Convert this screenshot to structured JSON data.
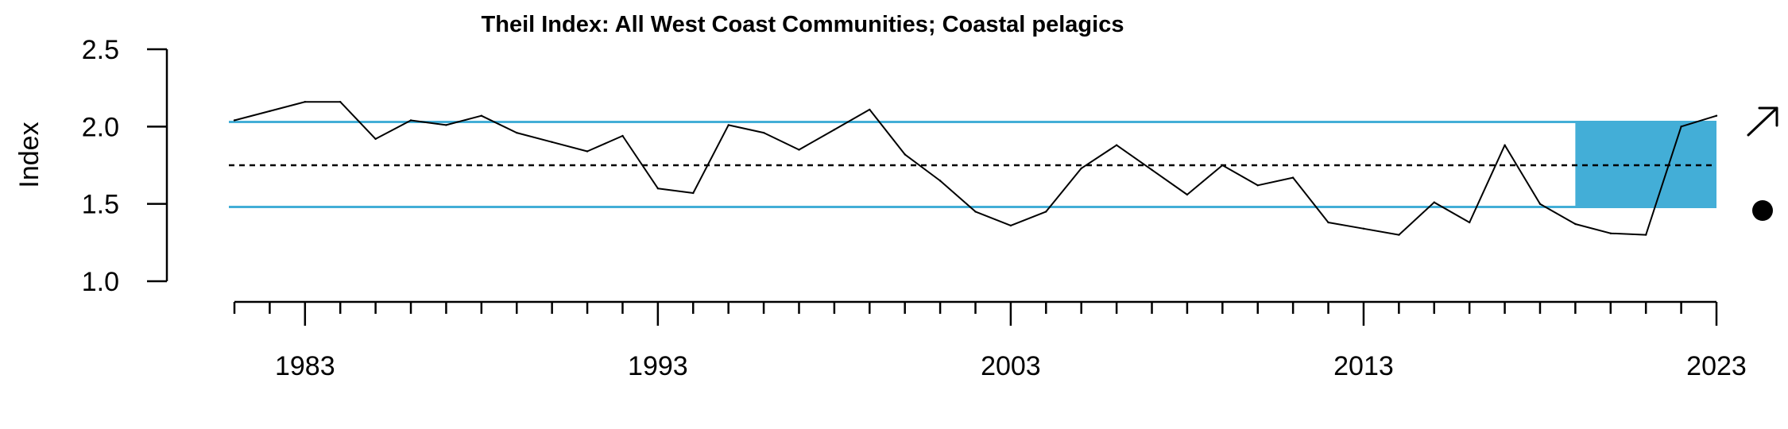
{
  "chart_data": {
    "type": "line",
    "title": "Theil Index: All West Coast Communities; Coastal pelagics",
    "ylabel": "Index",
    "xlabel": "",
    "ylim": [
      1.0,
      2.5
    ],
    "xlim": [
      1981,
      2023
    ],
    "yticks": [
      "1.0",
      "1.5",
      "2.0",
      "2.5"
    ],
    "x_major_ticks": [
      1983,
      1993,
      2003,
      2013,
      2023
    ],
    "x_minor_ticks_every": 1,
    "grid": false,
    "legend": "none",
    "reference_lines": {
      "mean": 1.75,
      "upper_sd": 2.03,
      "lower_sd": 1.48,
      "mean_style": "dashed",
      "sd_color": "#43aed7"
    },
    "highlight_period": {
      "x_start": 2019,
      "x_end": 2023,
      "y_low": 1.48,
      "y_high": 2.03,
      "color": "#43aed7"
    },
    "series": [
      {
        "x": [
          1981,
          1982,
          1983,
          1984,
          1985,
          1986,
          1987,
          1988,
          1989,
          1990,
          1991,
          1992,
          1993,
          1994,
          1995,
          1996,
          1997,
          1998,
          1999,
          2000,
          2001,
          2002,
          2003,
          2004,
          2005,
          2006,
          2007,
          2008,
          2009,
          2010,
          2011,
          2012,
          2013,
          2014,
          2015,
          2016,
          2017,
          2018,
          2019,
          2020,
          2021,
          2022,
          2023
        ],
        "values": [
          2.04,
          2.1,
          2.16,
          2.16,
          1.92,
          2.04,
          2.01,
          2.07,
          1.96,
          1.9,
          1.84,
          1.94,
          1.6,
          1.57,
          2.01,
          1.96,
          1.85,
          1.98,
          2.11,
          1.82,
          1.65,
          1.45,
          1.36,
          1.45,
          1.73,
          1.88,
          1.72,
          1.56,
          1.75,
          1.62,
          1.67,
          1.38,
          1.34,
          1.3,
          1.51,
          1.38,
          1.88,
          1.5,
          1.37,
          1.31,
          1.3,
          2.0,
          2.07
        ],
        "color": "#000000"
      }
    ],
    "trend_symbols": {
      "trend": "arrow-up-right-icon",
      "mean_status": "filled-circle-icon"
    }
  }
}
